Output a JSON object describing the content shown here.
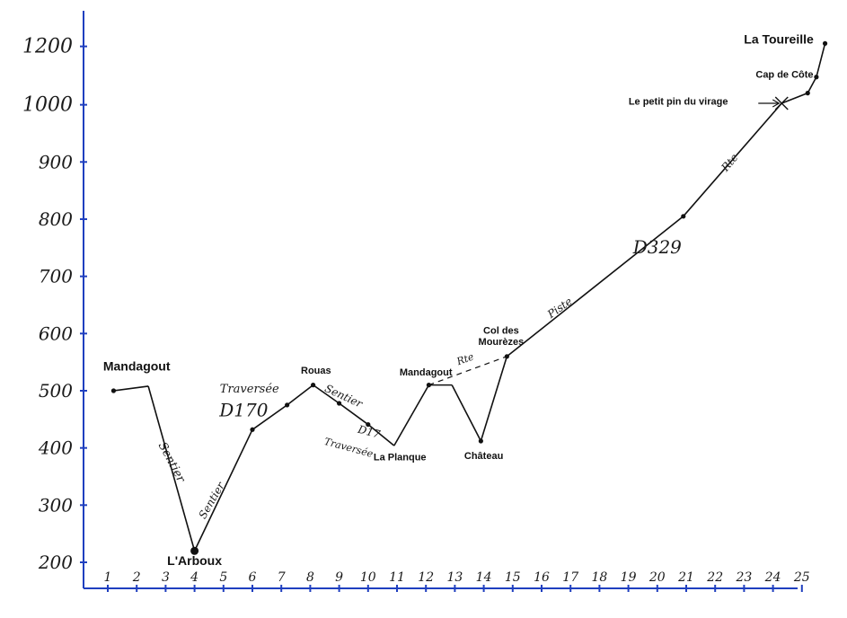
{
  "chart_data": {
    "type": "line",
    "x_ticks": [
      "1",
      "2",
      "3",
      "4",
      "5",
      "6",
      "7",
      "8",
      "9",
      "10",
      "11",
      "12",
      "13",
      "14",
      "15",
      "16",
      "17",
      "18",
      "19",
      "20",
      "21",
      "22",
      "23",
      "24",
      "25"
    ],
    "y_ticks": [
      "200",
      "300",
      "400",
      "500",
      "600",
      "700",
      "800",
      "900",
      "1000",
      "1200"
    ],
    "y_tick_values": [
      200,
      300,
      400,
      500,
      600,
      700,
      800,
      900,
      1000,
      1200
    ],
    "xlim": [
      0.7,
      25.9
    ],
    "ylim": [
      180,
      1230
    ],
    "series": [
      {
        "points": [
          {
            "x": 1.2,
            "y": 500
          },
          {
            "x": 2.4,
            "y": 508
          },
          {
            "x": 4.0,
            "y": 220
          },
          {
            "x": 6.0,
            "y": 432
          },
          {
            "x": 7.2,
            "y": 475
          },
          {
            "x": 8.1,
            "y": 510
          },
          {
            "x": 9.0,
            "y": 478
          },
          {
            "x": 10.0,
            "y": 441
          },
          {
            "x": 10.9,
            "y": 404
          },
          {
            "x": 12.1,
            "y": 510
          },
          {
            "x": 12.9,
            "y": 510
          },
          {
            "x": 13.9,
            "y": 412
          },
          {
            "x": 14.8,
            "y": 560
          },
          {
            "x": 20.9,
            "y": 805
          },
          {
            "x": 24.3,
            "y": 1005
          },
          {
            "x": 25.2,
            "y": 1040
          },
          {
            "x": 25.5,
            "y": 1095
          },
          {
            "x": 25.8,
            "y": 1210
          }
        ]
      }
    ],
    "markers": [
      {
        "x": 1.2,
        "y": 500
      },
      {
        "x": 4.0,
        "y": 220
      },
      {
        "x": 6.0,
        "y": 432
      },
      {
        "x": 7.2,
        "y": 475
      },
      {
        "x": 8.1,
        "y": 510
      },
      {
        "x": 9.0,
        "y": 478
      },
      {
        "x": 10.0,
        "y": 441
      },
      {
        "x": 12.1,
        "y": 510
      },
      {
        "x": 13.9,
        "y": 412
      },
      {
        "x": 14.8,
        "y": 560
      },
      {
        "x": 20.9,
        "y": 805
      },
      {
        "x": 25.2,
        "y": 1040
      },
      {
        "x": 25.5,
        "y": 1095
      },
      {
        "x": 25.8,
        "y": 1210
      }
    ],
    "place_labels": [
      {
        "text": "Mandagout",
        "x": 2.0,
        "y": 535,
        "size": 14
      },
      {
        "text": "L'Arboux",
        "x": 4.0,
        "y": 195,
        "size": 14
      },
      {
        "text": "Rouas",
        "x": 8.2,
        "y": 530,
        "size": 11
      },
      {
        "text": "Mandagout",
        "x": 12.0,
        "y": 527,
        "size": 11
      },
      {
        "text": "La Planque",
        "x": 11.1,
        "y": 378,
        "size": 11
      },
      {
        "text": "Château",
        "x": 14.0,
        "y": 381,
        "size": 11
      },
      {
        "text": "Col des",
        "x": 14.6,
        "y": 600,
        "size": 11
      },
      {
        "text": "Mourèzes",
        "x": 14.6,
        "y": 580,
        "size": 11
      },
      {
        "text": "Le petit pin du virage",
        "x": 21.2,
        "y": 1000,
        "size": 11
      },
      {
        "text": "Cap de Côte",
        "x": 24.4,
        "y": 1093,
        "size": 11
      },
      {
        "text": "La Toureille",
        "x": 24.2,
        "y": 1210,
        "size": 14
      }
    ],
    "annotations": [
      {
        "text": "Sentier",
        "x": 3.1,
        "y": 372,
        "rotate": 62,
        "size": 13
      },
      {
        "text": "Sentier",
        "x": 4.7,
        "y": 305,
        "rotate": -60,
        "size": 12
      },
      {
        "text": "Traversée",
        "x": 5.9,
        "y": 497,
        "rotate": 0,
        "size": 13
      },
      {
        "text": "D170",
        "x": 5.7,
        "y": 455,
        "rotate": 0,
        "size": 20
      },
      {
        "text": "Sentier",
        "x": 9.1,
        "y": 485,
        "rotate": 25,
        "size": 12
      },
      {
        "text": "D17",
        "x": 10.0,
        "y": 422,
        "rotate": 15,
        "size": 12
      },
      {
        "text": "Traversée",
        "x": 9.3,
        "y": 395,
        "rotate": 15,
        "size": 11
      },
      {
        "text": "Rte",
        "x": 13.4,
        "y": 550,
        "rotate": -20,
        "size": 11
      },
      {
        "text": "Piste",
        "x": 16.7,
        "y": 640,
        "rotate": -35,
        "size": 12
      },
      {
        "text": "D329",
        "x": 20.0,
        "y": 740,
        "rotate": 0,
        "size": 20
      },
      {
        "text": "Rte",
        "x": 22.6,
        "y": 895,
        "rotate": -50,
        "size": 12
      }
    ]
  }
}
